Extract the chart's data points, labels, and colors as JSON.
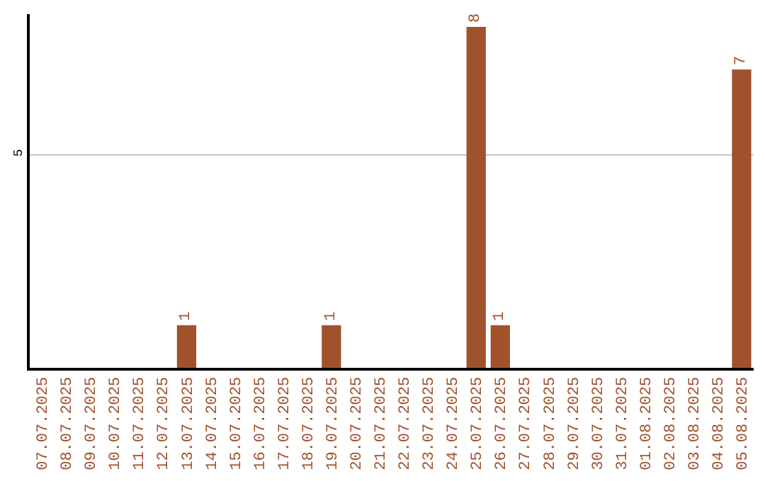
{
  "chart_data": {
    "type": "bar",
    "categories": [
      "07.07.2025",
      "08.07.2025",
      "09.07.2025",
      "10.07.2025",
      "11.07.2025",
      "12.07.2025",
      "13.07.2025",
      "14.07.2025",
      "15.07.2025",
      "16.07.2025",
      "17.07.2025",
      "18.07.2025",
      "19.07.2025",
      "20.07.2025",
      "21.07.2025",
      "22.07.2025",
      "23.07.2025",
      "24.07.2025",
      "25.07.2025",
      "26.07.2025",
      "27.07.2025",
      "28.07.2025",
      "29.07.2025",
      "30.07.2025",
      "31.07.2025",
      "01.08.2025",
      "02.08.2025",
      "03.08.2025",
      "04.08.2025",
      "05.08.2025"
    ],
    "values": [
      0,
      0,
      0,
      0,
      0,
      0,
      1,
      0,
      0,
      0,
      0,
      0,
      1,
      0,
      0,
      0,
      0,
      0,
      8,
      1,
      0,
      0,
      0,
      0,
      0,
      0,
      0,
      0,
      0,
      7
    ],
    "value_labels": [
      null,
      null,
      null,
      null,
      null,
      null,
      "1",
      null,
      null,
      null,
      null,
      null,
      "1",
      null,
      null,
      null,
      null,
      null,
      "8",
      "1",
      null,
      null,
      null,
      null,
      null,
      null,
      null,
      null,
      null,
      "7"
    ],
    "color": "#a0522d",
    "ylim": [
      0,
      8.3
    ],
    "yticks": [
      5
    ],
    "grid": "y",
    "legend": false
  }
}
